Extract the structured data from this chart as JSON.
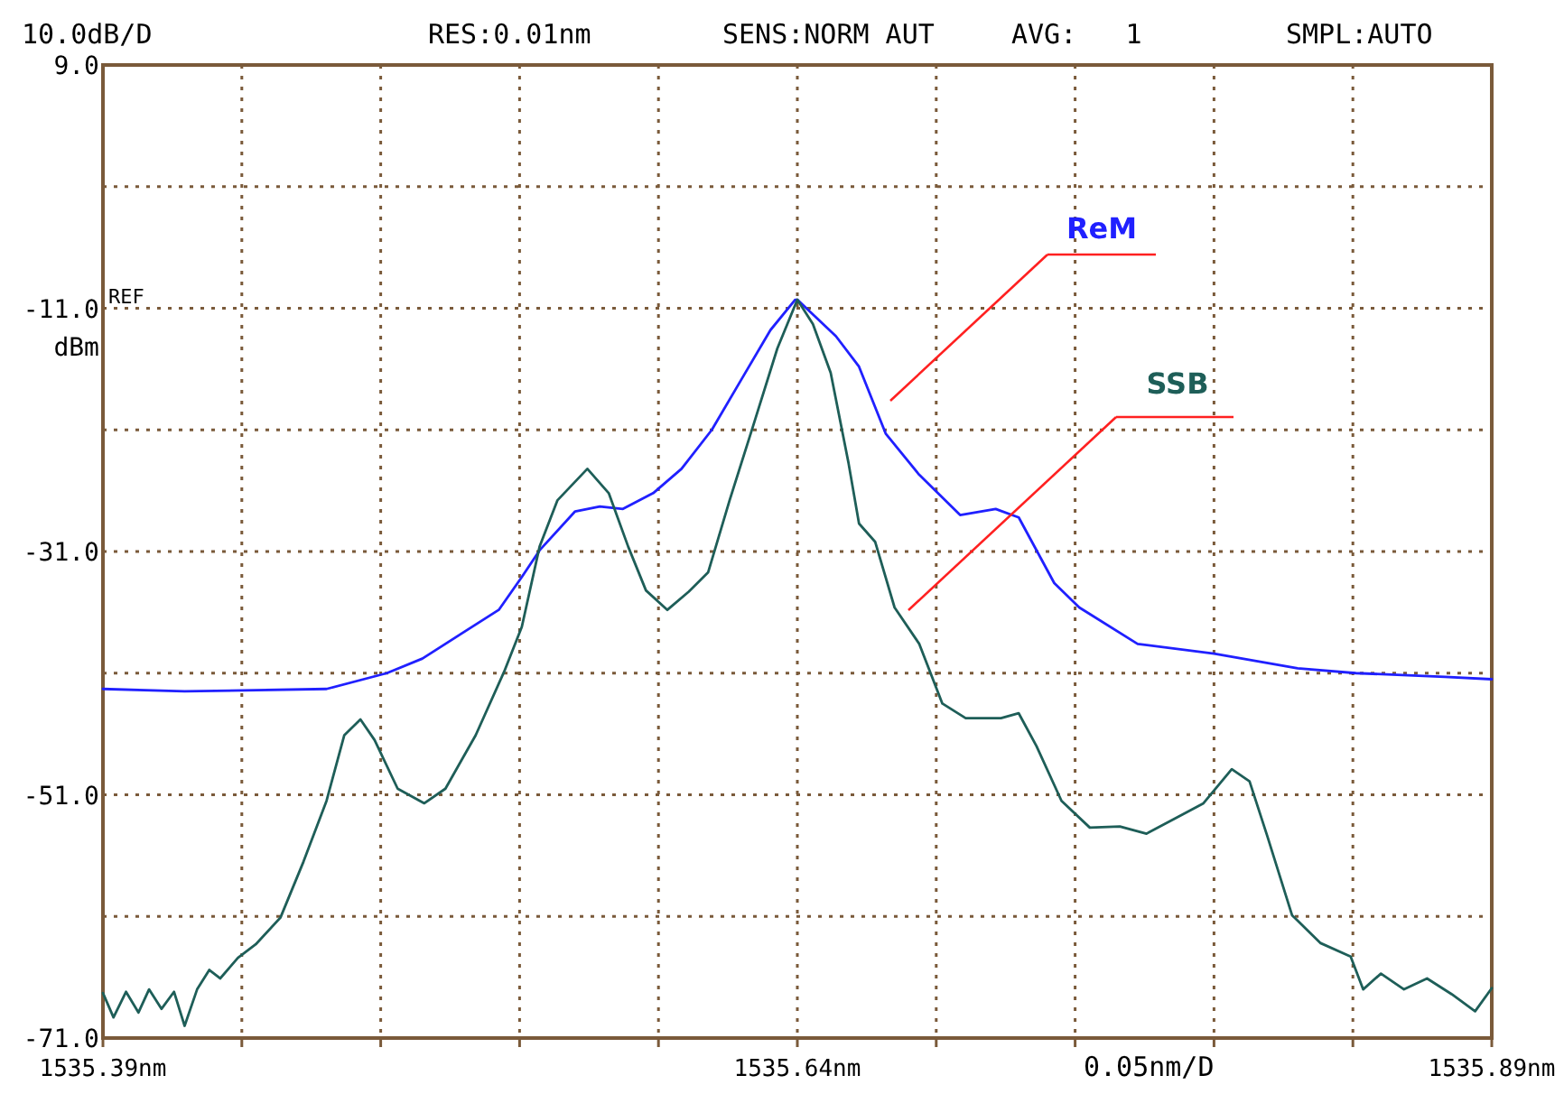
{
  "chart_data": {
    "type": "line",
    "ylabel": "dBm",
    "annotations": [
      "10.0dB/D",
      "RES:0.01nm",
      "SENS:NORM AUT",
      "AVG:   1",
      "SMPL:AUTO",
      "REF",
      "0.05nm/D"
    ],
    "xlim": [
      1535.39,
      1535.89
    ],
    "xticks": [
      {
        "value": 1535.39,
        "label": "1535.39nm"
      },
      {
        "value": 1535.44,
        "label": null
      },
      {
        "value": 1535.49,
        "label": null
      },
      {
        "value": 1535.54,
        "label": null
      },
      {
        "value": 1535.59,
        "label": null
      },
      {
        "value": 1535.64,
        "label": "1535.64nm"
      },
      {
        "value": 1535.69,
        "label": null
      },
      {
        "value": 1535.74,
        "label": null
      },
      {
        "value": 1535.79,
        "label": null
      },
      {
        "value": 1535.84,
        "label": null
      },
      {
        "value": 1535.89,
        "label": "1535.89nm"
      }
    ],
    "ylim": [
      -71,
      9
    ],
    "yticks": [
      {
        "value": 9,
        "label": "9.0"
      },
      {
        "value": -1,
        "label": null
      },
      {
        "value": -11,
        "label": "-11.0"
      },
      {
        "value": -21,
        "label": null
      },
      {
        "value": -31,
        "label": "-31.0"
      },
      {
        "value": -41,
        "label": null
      },
      {
        "value": -51,
        "label": "-51.0"
      },
      {
        "value": -61,
        "label": null
      },
      {
        "value": -71,
        "label": "-71.0"
      }
    ],
    "grid": true,
    "line_style": "solid",
    "series": [
      {
        "name": "ReM",
        "color": "#2020ff",
        "x": [
          1535.39,
          1535.4194,
          1535.4705,
          1535.4922,
          1535.505,
          1535.5325,
          1535.5408,
          1535.5472,
          1535.56,
          1535.5689,
          1535.5772,
          1535.5881,
          1535.5983,
          1535.6092,
          1535.62,
          1535.6303,
          1535.6392,
          1535.64,
          1535.6539,
          1535.6622,
          1535.6718,
          1535.6839,
          1535.6986,
          1535.7114,
          1535.7197,
          1535.7325,
          1535.7415,
          1535.7625,
          1535.79,
          1535.8201,
          1535.8411,
          1535.8731,
          1535.89
        ],
        "values": [
          -42.3,
          -42.5,
          -42.3,
          -41.0,
          -39.8,
          -35.8,
          -33.1,
          -30.9,
          -27.7,
          -27.3,
          -27.5,
          -26.2,
          -24.2,
          -21.0,
          -16.8,
          -12.8,
          -10.3,
          -10.3,
          -13.3,
          -15.8,
          -21.3,
          -24.7,
          -28.0,
          -27.5,
          -28.2,
          -33.6,
          -35.6,
          -38.6,
          -39.4,
          -40.6,
          -41.0,
          -41.3,
          -41.5
        ]
      },
      {
        "name": "SSB",
        "color": "#1e5e58",
        "x": [
          1535.39,
          1535.3938,
          1535.3983,
          1535.4028,
          1535.4066,
          1535.4111,
          1535.4156,
          1535.4194,
          1535.4239,
          1535.4283,
          1535.4322,
          1535.4386,
          1535.445,
          1535.4539,
          1535.4622,
          1535.4705,
          1535.4769,
          1535.4827,
          1535.4878,
          1535.4961,
          1535.5057,
          1535.5133,
          1535.5242,
          1535.5344,
          1535.5408,
          1535.5472,
          1535.5536,
          1535.5644,
          1535.5721,
          1535.5791,
          1535.5855,
          1535.5932,
          1535.6009,
          1535.6079,
          1535.6156,
          1535.6239,
          1535.6328,
          1535.64,
          1535.6456,
          1535.652,
          1535.6584,
          1535.6622,
          1535.668,
          1535.675,
          1535.6839,
          1535.6922,
          1535.7006,
          1535.7133,
          1535.7197,
          1535.7261,
          1535.7351,
          1535.7453,
          1535.7561,
          1535.7657,
          1535.7772,
          1535.7862,
          1535.7964,
          1535.8028,
          1535.8092,
          1535.8181,
          1535.8284,
          1535.8392,
          1535.8437,
          1535.8501,
          1535.8584,
          1535.8667,
          1535.8756,
          1535.884,
          1535.89
        ],
        "values": [
          -67.3,
          -69.3,
          -67.2,
          -68.9,
          -67.0,
          -68.6,
          -67.2,
          -70.0,
          -67.0,
          -65.4,
          -66.1,
          -64.4,
          -63.3,
          -61.1,
          -56.5,
          -51.5,
          -46.1,
          -44.8,
          -46.5,
          -50.5,
          -51.7,
          -50.5,
          -46.1,
          -40.9,
          -37.2,
          -30.6,
          -26.8,
          -24.2,
          -26.2,
          -30.6,
          -34.2,
          -35.8,
          -34.3,
          -32.7,
          -26.8,
          -20.8,
          -14.3,
          -10.3,
          -12.3,
          -16.3,
          -23.7,
          -28.7,
          -30.2,
          -35.6,
          -38.6,
          -43.5,
          -44.7,
          -44.7,
          -44.3,
          -47.0,
          -51.5,
          -53.7,
          -53.6,
          -54.2,
          -52.8,
          -51.7,
          -48.9,
          -49.9,
          -54.4,
          -60.9,
          -63.2,
          -64.3,
          -67.0,
          -65.7,
          -67.0,
          -66.1,
          -67.4,
          -68.8,
          -66.9
        ]
      }
    ]
  }
}
